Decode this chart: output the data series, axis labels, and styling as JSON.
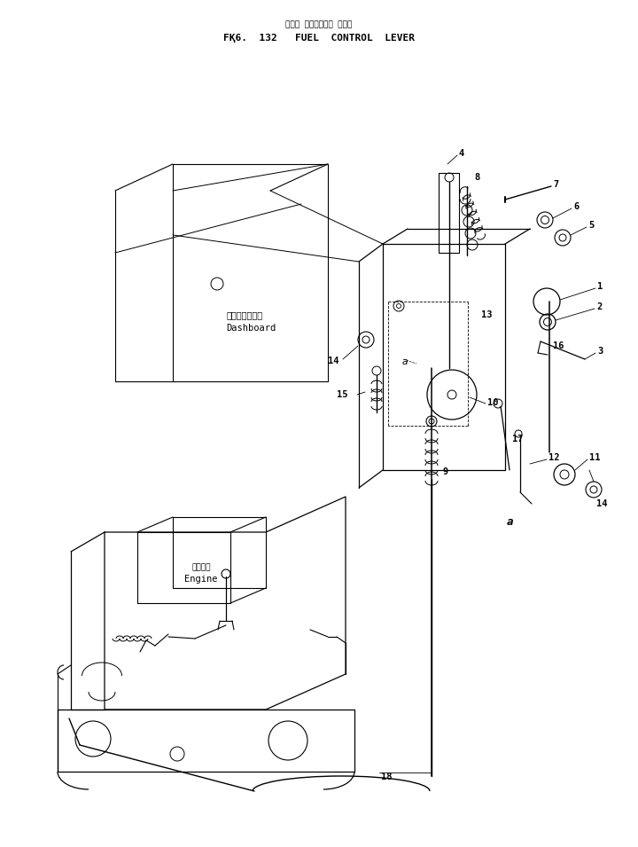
{
  "title_japanese": "フェル コントロール レバー",
  "title_english": "FҚ6.  132   FUEL  CONTROL  LEVER",
  "bg_color": "#ffffff",
  "line_color": "#000000",
  "fig_width": 7.2,
  "fig_height": 9.55,
  "dpi": 100,
  "labels": {
    "dashboard_ja": "ダッシュボード",
    "dashboard_en": "Dashboard",
    "engine_ja": "エンジン",
    "engine_en": "Engine"
  }
}
